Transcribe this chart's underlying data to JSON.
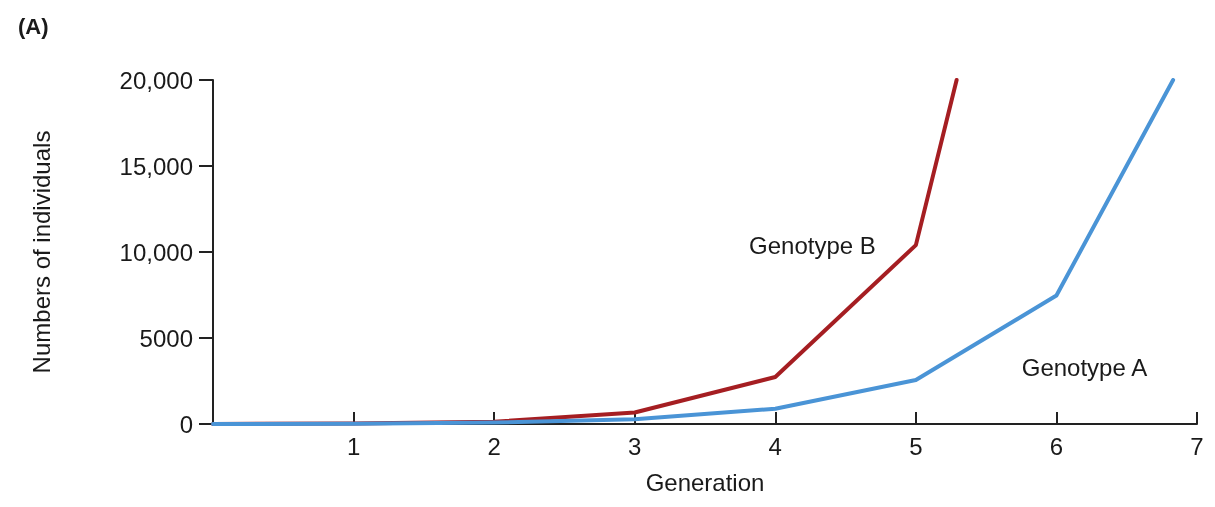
{
  "chart_data": {
    "type": "line",
    "title": "(A)",
    "xlabel": "Generation",
    "ylabel": "Numbers of individuals",
    "xlim": [
      0,
      7
    ],
    "xticks": [
      1,
      2,
      3,
      4,
      5,
      6,
      7
    ],
    "ylim": [
      0,
      20000
    ],
    "yticks": [
      0,
      5000,
      {
        "value": 10000,
        "label": "10,000"
      },
      {
        "value": 15000,
        "label": "15,000"
      },
      {
        "value": 20000,
        "label": "20,000"
      }
    ],
    "grid": false,
    "marker": "none",
    "line_style": "solid",
    "legend": false,
    "series": [
      {
        "name": "Genotype B",
        "color": "#a51e22",
        "x": [
          0,
          1,
          2,
          3,
          4,
          5,
          5.29
        ],
        "values": [
          0,
          30,
          130,
          670,
          2730,
          10400,
          20000
        ]
      },
      {
        "name": "Genotype A",
        "color": "#4a94d6",
        "x": [
          0,
          1,
          2,
          3,
          4,
          5,
          6,
          6.83
        ],
        "values": [
          0,
          20,
          80,
          280,
          890,
          2560,
          7470,
          20000
        ]
      }
    ]
  }
}
